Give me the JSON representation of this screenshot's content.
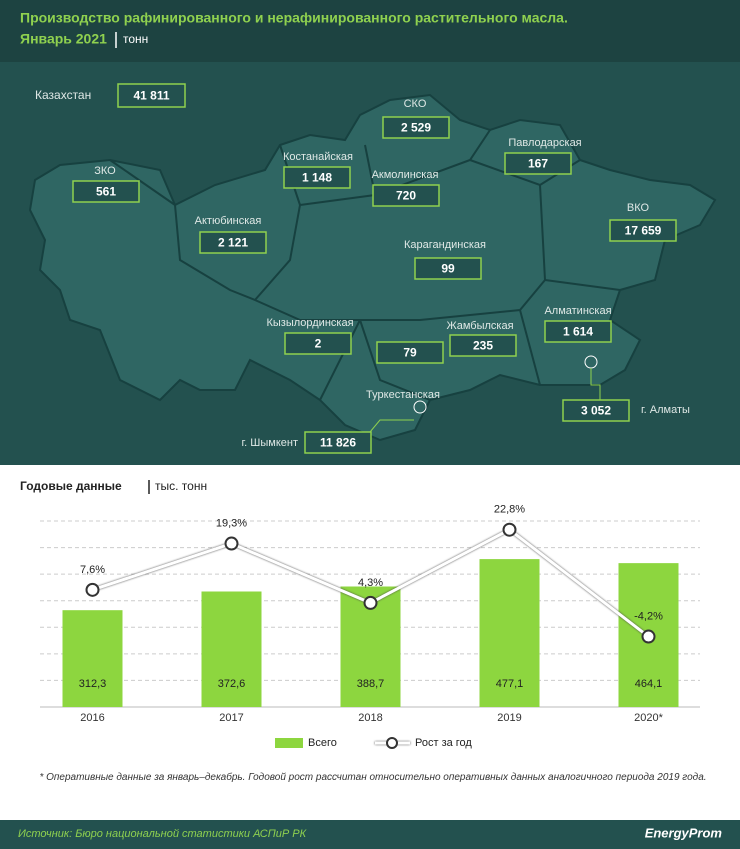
{
  "header": {
    "title": "Производство рафинированного и нерафинированного растительного масла.",
    "period": "Январь 2021",
    "unit": "тонн"
  },
  "map": {
    "total": {
      "label": "Казахстан",
      "value": "41 811"
    },
    "regions": [
      {
        "label": "СКО",
        "value": "2 529"
      },
      {
        "label": "Костанайская",
        "value": "1 148"
      },
      {
        "label": "Павлодарская",
        "value": "167"
      },
      {
        "label": "ЗКО",
        "value": "561"
      },
      {
        "label": "Акмолинская",
        "value": "720"
      },
      {
        "label": "Актюбинская",
        "value": "2 121"
      },
      {
        "label": "ВКО",
        "value": "17 659"
      },
      {
        "label": "Карагандинская",
        "value": "99"
      },
      {
        "label": "Кызылординская",
        "value": "2"
      },
      {
        "label": "Туркестанская",
        "value": "79"
      },
      {
        "label": "Жамбылская",
        "value": "235"
      },
      {
        "label": "Алматинская",
        "value": "1 614"
      },
      {
        "label": "г. Алматы",
        "value": "3 052"
      },
      {
        "label": "г. Шымкент",
        "value": "11 826"
      }
    ]
  },
  "chart_data": {
    "type": "bar",
    "title": "Годовые данные",
    "subtitle": "тыс. тонн",
    "categories": [
      "2016",
      "2017",
      "2018",
      "2019",
      "2020*"
    ],
    "ylim": [
      0,
      600
    ],
    "y2lim": [
      -22,
      25
    ],
    "grid": true,
    "series": [
      {
        "name": "Всего",
        "type": "bar",
        "color": "#8dd63f",
        "values": [
          312.3,
          372.6,
          388.7,
          477.1,
          464.1
        ],
        "value_labels": [
          "312,3",
          "372,6",
          "388,7",
          "477,1",
          "464,1"
        ]
      },
      {
        "name": "Рост за год",
        "type": "line",
        "axis": "y2",
        "color": "#ffffff",
        "values": [
          7.6,
          19.3,
          4.3,
          22.8,
          -4.2
        ],
        "value_labels": [
          "7,6%",
          "19,3%",
          "4,3%",
          "22,8%",
          "-4,2%"
        ]
      }
    ]
  },
  "footnote": "* Оперативные данные за январь–декабрь. Годовой рост рассчитан относительно оперативных данных аналогичного периода 2019 года.",
  "source": "Источник: Бюро национальной статистики АСПиР РК",
  "brand": "EnergyProm"
}
